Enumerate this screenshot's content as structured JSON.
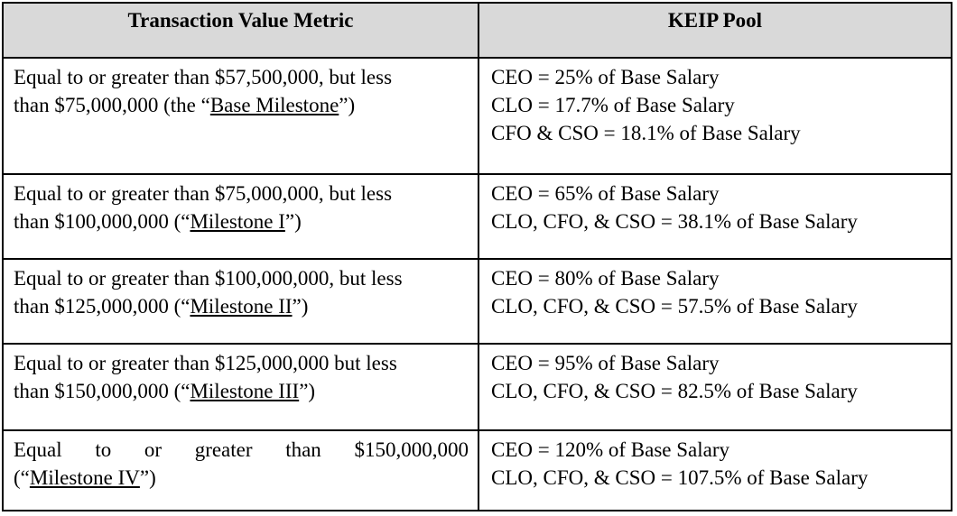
{
  "headers": {
    "metric": "Transaction Value Metric",
    "pool": "KEIP Pool"
  },
  "rows": [
    {
      "metric_line1": "Equal to or greater than $57,500,000, but less",
      "metric_line2_pre": "than $75,000,000 (the “",
      "milestone": "Base Milestone",
      "metric_line2_post": "”)",
      "pool": [
        "CEO = 25% of Base Salary",
        "CLO = 17.7% of Base Salary",
        "CFO & CSO = 18.1% of Base Salary"
      ]
    },
    {
      "metric_line1": "Equal to or greater than $75,000,000, but less",
      "metric_line2_pre": "than $100,000,000 (“",
      "milestone": "Milestone I",
      "metric_line2_post": "”)",
      "pool": [
        "CEO = 65% of Base Salary",
        "CLO, CFO, & CSO = 38.1% of Base Salary"
      ]
    },
    {
      "metric_line1": "Equal to or greater than $100,000,000, but less",
      "metric_line2_pre": "than $125,000,000 (“",
      "milestone": "Milestone II",
      "metric_line2_post": "”)",
      "pool": [
        "CEO = 80% of Base Salary",
        "CLO, CFO, & CSO = 57.5% of Base Salary"
      ]
    },
    {
      "metric_line1": "Equal to or greater than $125,000,000 but less",
      "metric_line2_pre": "than $150,000,000 (“",
      "milestone": "Milestone III",
      "metric_line2_post": "”)",
      "pool": [
        "CEO = 95% of Base Salary",
        "CLO, CFO, & CSO = 82.5% of Base Salary"
      ]
    },
    {
      "metric_line1_words": [
        "Equal",
        "to",
        "or",
        "greater",
        "than",
        "$150,000,000"
      ],
      "metric_line2_pre": "(“",
      "milestone": "Milestone IV",
      "metric_line2_post": "”)",
      "pool": [
        "CEO = 120% of Base Salary",
        "CLO, CFO, & CSO = 107.5% of Base Salary"
      ]
    }
  ]
}
